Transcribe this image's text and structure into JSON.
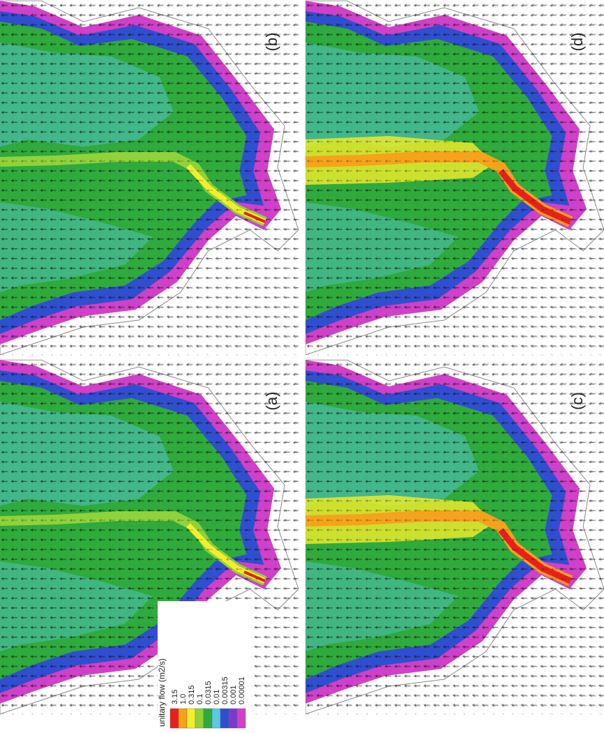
{
  "panels": [
    {
      "label": "(a)"
    },
    {
      "label": "(b)"
    },
    {
      "label": "(c)"
    },
    {
      "label": "(d)"
    }
  ],
  "legend": {
    "title": "unitary flow (m2/s)",
    "items": [
      {
        "label": "3.15",
        "color": "#e8201c"
      },
      {
        "label": "1.0",
        "color": "#f7a21b"
      },
      {
        "label": "0.315",
        "color": "#f4ee2a"
      },
      {
        "label": "0.1",
        "color": "#8fd23a"
      },
      {
        "label": "0.0315",
        "color": "#2faa3c"
      },
      {
        "label": "0.01",
        "color": "#5cc8e6"
      },
      {
        "label": "0.00315",
        "color": "#2f4fd0"
      },
      {
        "label": "0.001",
        "color": "#7a3cc8"
      },
      {
        "label": "0.00001",
        "color": "#d040c8"
      }
    ]
  }
}
